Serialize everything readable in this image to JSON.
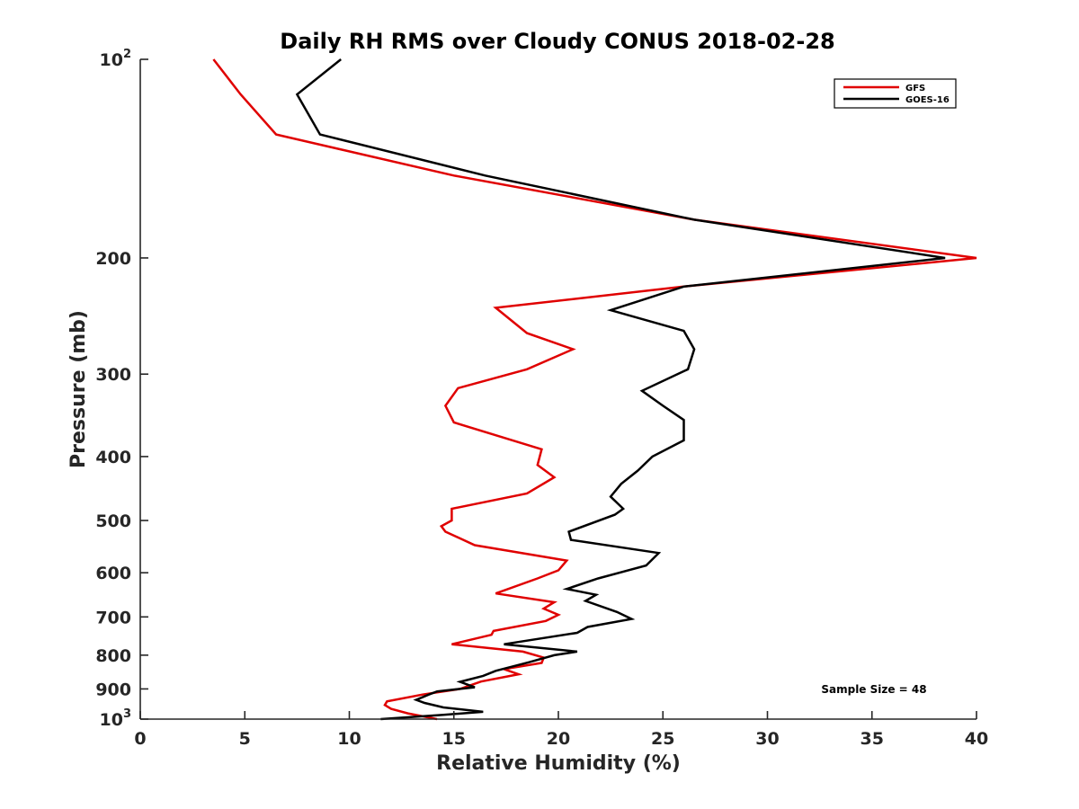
{
  "colors": {
    "gfs": "#e00000",
    "goes16": "#000000",
    "axis": "#262626"
  },
  "chart_data": {
    "type": "line",
    "title": "Daily RH RMS over Cloudy CONUS 2018-02-28",
    "xlabel": "Relative Humidity (%)",
    "ylabel": "Pressure (mb)",
    "xlim": [
      0,
      40
    ],
    "ylim": [
      100,
      1000
    ],
    "yscale": "log",
    "y_reversed": true,
    "grid": false,
    "legend_position": "top-right",
    "xticks": [
      0,
      5,
      10,
      15,
      20,
      25,
      30,
      35,
      40
    ],
    "yticks": [
      {
        "value": 100,
        "base": "10",
        "exp": "2"
      },
      {
        "value": 200,
        "label": "200"
      },
      {
        "value": 300,
        "label": "300"
      },
      {
        "value": 400,
        "label": "400"
      },
      {
        "value": 500,
        "label": "500"
      },
      {
        "value": 600,
        "label": "600"
      },
      {
        "value": 700,
        "label": "700"
      },
      {
        "value": 800,
        "label": "800"
      },
      {
        "value": 900,
        "label": "900"
      },
      {
        "value": 1000,
        "base": "10",
        "exp": "3"
      }
    ],
    "annotation": "Sample Size = 48",
    "series": [
      {
        "name": "GFS",
        "color": "#e00000",
        "points": [
          [
            3.5,
            100
          ],
          [
            4.8,
            113
          ],
          [
            6.5,
            130
          ],
          [
            15.0,
            150
          ],
          [
            26.5,
            175
          ],
          [
            40.0,
            200
          ],
          [
            26.0,
            221
          ],
          [
            17.0,
            238
          ],
          [
            18.5,
            260
          ],
          [
            20.7,
            275
          ],
          [
            18.5,
            295
          ],
          [
            15.2,
            315
          ],
          [
            14.6,
            335
          ],
          [
            15.0,
            355
          ],
          [
            19.2,
            390
          ],
          [
            19.0,
            412
          ],
          [
            19.8,
            430
          ],
          [
            18.5,
            455
          ],
          [
            14.9,
            480
          ],
          [
            14.9,
            500
          ],
          [
            14.4,
            510
          ],
          [
            14.6,
            520
          ],
          [
            16.0,
            545
          ],
          [
            20.4,
            575
          ],
          [
            20.0,
            595
          ],
          [
            19.0,
            612
          ],
          [
            17.0,
            645
          ],
          [
            19.8,
            665
          ],
          [
            19.3,
            680
          ],
          [
            20.0,
            695
          ],
          [
            19.4,
            710
          ],
          [
            16.9,
            735
          ],
          [
            16.8,
            745
          ],
          [
            14.9,
            770
          ],
          [
            18.3,
            790
          ],
          [
            19.3,
            807
          ],
          [
            19.2,
            822
          ],
          [
            17.4,
            840
          ],
          [
            18.1,
            855
          ],
          [
            16.3,
            877
          ],
          [
            15.3,
            900
          ],
          [
            13.5,
            918
          ],
          [
            11.8,
            940
          ],
          [
            11.7,
            952
          ],
          [
            12.0,
            965
          ],
          [
            12.8,
            980
          ],
          [
            14.2,
            1000
          ]
        ]
      },
      {
        "name": "GOES-16",
        "color": "#000000",
        "points": [
          [
            9.6,
            100
          ],
          [
            7.5,
            113
          ],
          [
            8.6,
            130
          ],
          [
            16.5,
            150
          ],
          [
            26.5,
            175
          ],
          [
            38.5,
            200
          ],
          [
            26.0,
            221
          ],
          [
            22.5,
            240
          ],
          [
            26.0,
            258
          ],
          [
            26.5,
            275
          ],
          [
            26.2,
            295
          ],
          [
            24.0,
            318
          ],
          [
            25.0,
            335
          ],
          [
            26.0,
            352
          ],
          [
            26.0,
            378
          ],
          [
            24.5,
            400
          ],
          [
            23.8,
            420
          ],
          [
            23.0,
            440
          ],
          [
            22.5,
            460
          ],
          [
            23.1,
            480
          ],
          [
            22.7,
            490
          ],
          [
            20.5,
            520
          ],
          [
            20.6,
            535
          ],
          [
            24.8,
            560
          ],
          [
            24.2,
            585
          ],
          [
            21.9,
            612
          ],
          [
            20.4,
            635
          ],
          [
            21.8,
            648
          ],
          [
            21.3,
            662
          ],
          [
            22.8,
            688
          ],
          [
            23.5,
            705
          ],
          [
            21.4,
            725
          ],
          [
            20.9,
            740
          ],
          [
            17.4,
            770
          ],
          [
            20.9,
            790
          ],
          [
            19.8,
            800
          ],
          [
            18.6,
            820
          ],
          [
            17.0,
            845
          ],
          [
            16.4,
            860
          ],
          [
            15.3,
            878
          ],
          [
            16.0,
            895
          ],
          [
            14.2,
            908
          ],
          [
            13.8,
            918
          ],
          [
            13.2,
            935
          ],
          [
            13.6,
            945
          ],
          [
            14.5,
            960
          ],
          [
            16.4,
            975
          ],
          [
            14.5,
            985
          ],
          [
            11.5,
            1000
          ]
        ]
      }
    ]
  }
}
